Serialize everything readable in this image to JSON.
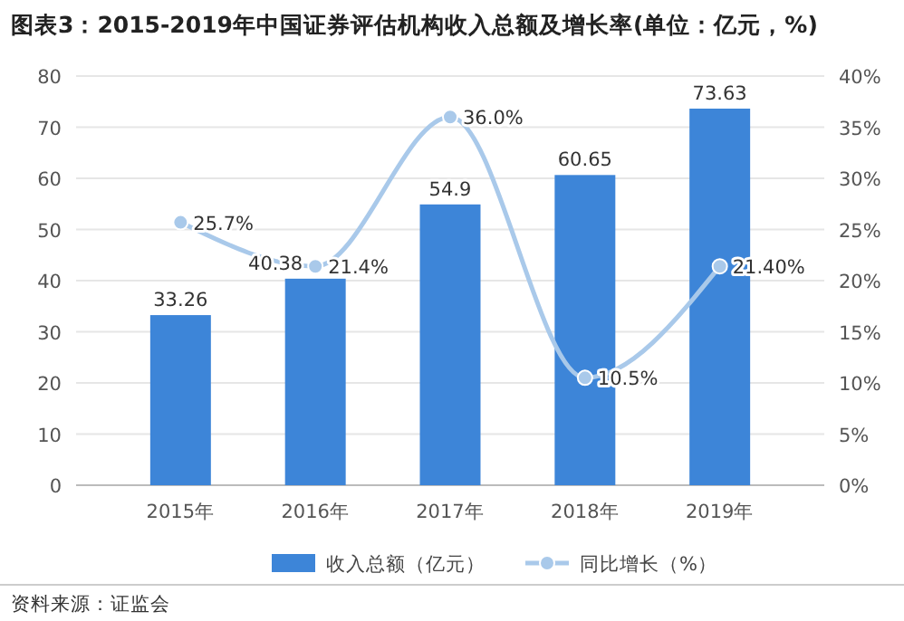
{
  "chart_data": {
    "type": "bar",
    "title": "图表3：2015-2019年中国证券评估机构收入总额及增长率(单位：亿元，%)",
    "categories": [
      "2015年",
      "2016年",
      "2017年",
      "2018年",
      "2019年"
    ],
    "series": [
      {
        "name": "收入总额（亿元）",
        "color": "#3d85d8",
        "values": [
          33.26,
          40.38,
          54.9,
          60.65,
          73.63
        ],
        "value_labels": [
          "33.26",
          "40.38",
          "54.9",
          "60.65",
          "73.63"
        ]
      },
      {
        "name": "同比增长（%）",
        "type": "line",
        "axis": "y2",
        "color": "#a9c9ea",
        "values": [
          25.7,
          21.4,
          36.0,
          10.5,
          21.4
        ],
        "value_labels": [
          "25.7%",
          "21.4%",
          "36.0%",
          "10.5%",
          "21.40%"
        ]
      }
    ],
    "ylim": [
      0,
      80
    ],
    "yticks": [
      0,
      10,
      20,
      30,
      40,
      50,
      60,
      70,
      80
    ],
    "y2lim": [
      0,
      40
    ],
    "y2ticks": [
      {
        "value": 0,
        "label": "0%"
      },
      {
        "value": 5,
        "label": "5%"
      },
      {
        "value": 10,
        "label": "10%"
      },
      {
        "value": 15,
        "label": "15%"
      },
      {
        "value": 20,
        "label": "20%"
      },
      {
        "value": 25,
        "label": "25%"
      },
      {
        "value": 30,
        "label": "30%"
      },
      {
        "value": 35,
        "label": "35%"
      },
      {
        "value": 40,
        "label": "40%"
      }
    ],
    "grid": "y",
    "legend": "bottom",
    "marker": "circle",
    "line_style": "solid",
    "annotations": [
      "资料来源：证监会"
    ]
  }
}
